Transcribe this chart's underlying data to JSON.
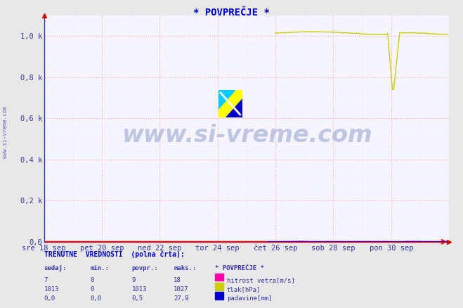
{
  "title": "* POVPREČJE *",
  "title_color": "#0000cc",
  "bg_color": "#f0f0f0",
  "plot_bg_color": "#f8f8ff",
  "n_points": 336,
  "xlim": [
    0,
    336
  ],
  "ylim": [
    0,
    1100
  ],
  "ytick_vals": [
    0,
    200,
    400,
    600,
    800,
    1000
  ],
  "ytick_labels": [
    "0,0",
    "0,2 k",
    "0,4 k",
    "0,6 k",
    "0,8 k",
    "1,0 k"
  ],
  "xtick_positions": [
    0,
    48,
    96,
    144,
    192,
    240,
    288,
    336
  ],
  "xtick_labels": [
    "sre 18 sep",
    "pet 20 sep",
    "ned 22 sep",
    "tor 24 sep",
    "čet 26 sep",
    "sob 28 sep",
    "pon 30 sep",
    ""
  ],
  "watermark": "www.si-vreme.com",
  "watermark_color": "#1a3a8a",
  "watermark_alpha": 0.25,
  "side_label": "www.si-vreme.com",
  "legend_labels": [
    "hitrost vetra[m/s]",
    "tlak[hPa]",
    "padavine[mm]"
  ],
  "legend_colors": [
    "#ff00aa",
    "#cccc00",
    "#0000cc"
  ],
  "table_header": "TRENUTNE  VREDNOSTI  (polna črta):",
  "table_col_headers": [
    "sedaj:",
    "min.:",
    "povpr.:",
    "maks.:",
    "* POVPREČJE *"
  ],
  "table_rows": [
    [
      "7",
      "0",
      "9",
      "18"
    ],
    [
      "1013",
      "0",
      "1013",
      "1027"
    ],
    [
      "0,0",
      "0,0",
      "0,5",
      "27,9"
    ]
  ],
  "logo_colors": [
    "#ffff00",
    "#00ccff",
    "#0000cc"
  ],
  "tlak_color": "#cccc00",
  "hitrost_color": "#ff00aa",
  "padavine_color": "#0000cc",
  "grid_major_color": "#ffaaaa",
  "grid_minor_color": "#ffdddd"
}
